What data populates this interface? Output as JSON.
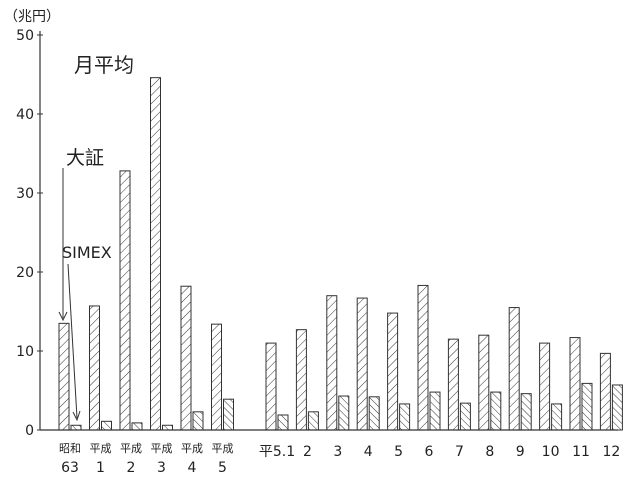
{
  "chart_data": {
    "type": "bar",
    "ylabel": "（兆円）",
    "ylim": [
      0,
      50
    ],
    "yticks": [
      0,
      10,
      20,
      30,
      40,
      50
    ],
    "grid": false,
    "categories": [
      {
        "top": "昭和",
        "bottom": "63"
      },
      {
        "top": "平成",
        "bottom": "1"
      },
      {
        "top": "平成",
        "bottom": "2"
      },
      {
        "top": "平成",
        "bottom": "3"
      },
      {
        "top": "平成",
        "bottom": "4"
      },
      {
        "top": "平成",
        "bottom": "5"
      },
      {
        "top": "平5.1",
        "bottom": ""
      },
      {
        "top": "2",
        "bottom": ""
      },
      {
        "top": "3",
        "bottom": ""
      },
      {
        "top": "4",
        "bottom": ""
      },
      {
        "top": "5",
        "bottom": ""
      },
      {
        "top": "6",
        "bottom": ""
      },
      {
        "top": "7",
        "bottom": ""
      },
      {
        "top": "8",
        "bottom": ""
      },
      {
        "top": "9",
        "bottom": ""
      },
      {
        "top": "10",
        "bottom": ""
      },
      {
        "top": "11",
        "bottom": ""
      },
      {
        "top": "12",
        "bottom": ""
      }
    ],
    "series": [
      {
        "name": "大証",
        "values": [
          13.5,
          15.7,
          32.8,
          44.6,
          18.2,
          13.4,
          11.0,
          12.7,
          17.0,
          16.7,
          14.8,
          18.3,
          11.5,
          12.0,
          15.5,
          11.0,
          11.7,
          9.7
        ]
      },
      {
        "name": "SIMEX",
        "values": [
          0.6,
          1.1,
          0.9,
          0.6,
          2.3,
          3.9,
          1.9,
          2.3,
          4.3,
          4.2,
          3.3,
          4.8,
          3.4,
          4.8,
          4.6,
          3.3,
          5.9,
          5.7
        ]
      }
    ],
    "annotations": [
      {
        "text": "月平均"
      },
      {
        "text": "大証"
      },
      {
        "text": "SIMEX"
      }
    ]
  }
}
